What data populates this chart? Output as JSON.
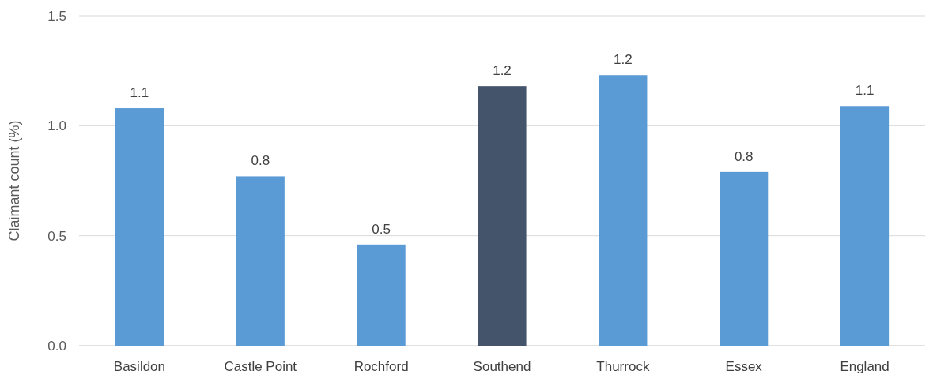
{
  "chart_data": {
    "type": "bar",
    "ylabel": "Claimant count (%)",
    "categories": [
      "Basildon",
      "Castle Point",
      "Rochford",
      "Southend",
      "Thurrock",
      "Essex",
      "England"
    ],
    "values": [
      1.08,
      0.77,
      0.46,
      1.18,
      1.23,
      0.79,
      1.09
    ],
    "colors": [
      "#5b9bd5",
      "#5b9bd5",
      "#5b9bd5",
      "#44546a",
      "#5b9bd5",
      "#5b9bd5",
      "#5b9bd5"
    ],
    "value_labels": [
      "1.1",
      "0.8",
      "0.5",
      "1.2",
      "1.2",
      "0.8",
      "1.1"
    ],
    "ylim": [
      0,
      1.5
    ],
    "yticks": [
      {
        "value": 0,
        "label": "0.0"
      },
      {
        "value": 0.5,
        "label": "0.5"
      },
      {
        "value": 1,
        "label": "1.0"
      },
      {
        "value": 1.5,
        "label": "1.5"
      }
    ],
    "grid": "y"
  }
}
